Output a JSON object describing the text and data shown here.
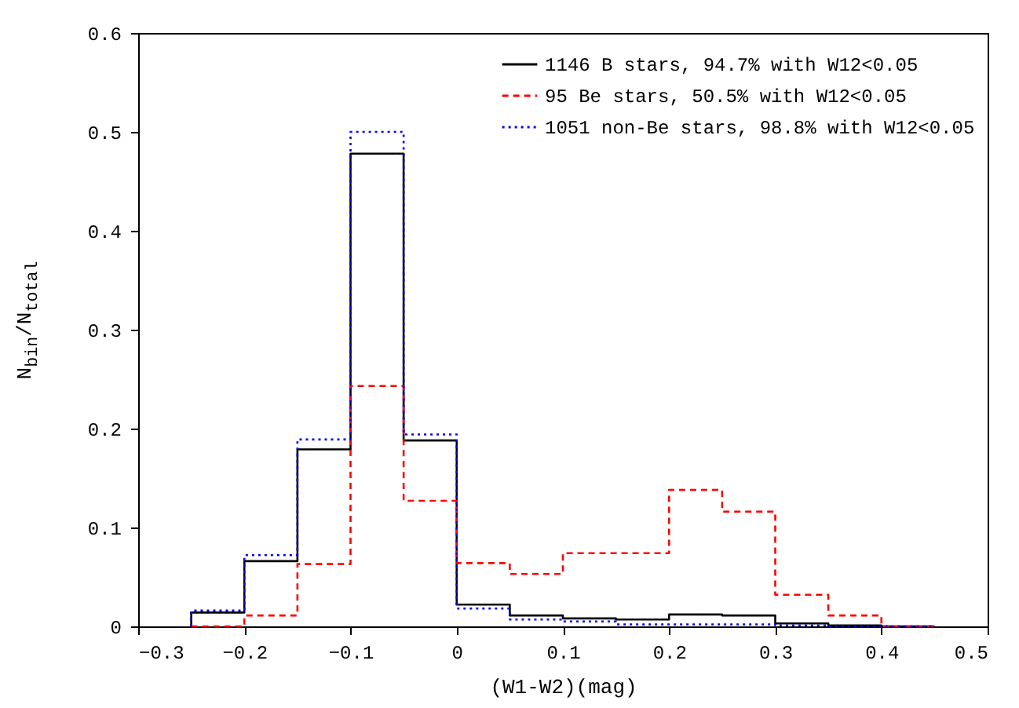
{
  "chart_data": {
    "type": "histogram",
    "xlabel": "(W1-W2)(mag)",
    "ylabel": "N$_{bin}$/N$_{total}$",
    "bins": [
      -0.25,
      -0.2,
      -0.15,
      -0.1,
      -0.05,
      0,
      0.05,
      0.1,
      0.15,
      0.2,
      0.25,
      0.3,
      0.35,
      0.4,
      0.45
    ],
    "series": [
      {
        "name": "1146 B stars, 94.7% with W12<0.05",
        "color": "#000000",
        "line_style": "solid",
        "values": [
          0.014,
          0.066,
          0.179,
          0.478,
          0.188,
          0.022,
          0.011,
          0.008,
          0.007,
          0.012,
          0.011,
          0.003,
          0.001,
          0.0
        ]
      },
      {
        "name": "95 Be stars, 50.5% with  W12<0.05",
        "color": "#ff0000",
        "line_style": "dashed",
        "values": [
          0.0,
          0.011,
          0.063,
          0.243,
          0.127,
          0.064,
          0.053,
          0.074,
          0.074,
          0.138,
          0.116,
          0.032,
          0.011,
          0.0
        ]
      },
      {
        "name": "1051 non-Be stars, 98.8% with W12<0.05",
        "color": "#0000ff",
        "line_style": "dotted",
        "values": [
          0.016,
          0.072,
          0.189,
          0.5,
          0.194,
          0.018,
          0.007,
          0.005,
          0.002,
          0.002,
          0.002,
          0.001,
          0.0,
          0.0
        ]
      }
    ],
    "xlim": [
      -0.3,
      0.5
    ],
    "xticks": [
      -0.3,
      -0.2,
      -0.1,
      0,
      0.1,
      0.2,
      0.3,
      0.4,
      0.5
    ],
    "ylim": [
      0,
      0.6
    ],
    "yticks": [
      0,
      0.1,
      0.2,
      0.3,
      0.4,
      0.5,
      0.6
    ],
    "legend": "top right",
    "grid": false
  }
}
